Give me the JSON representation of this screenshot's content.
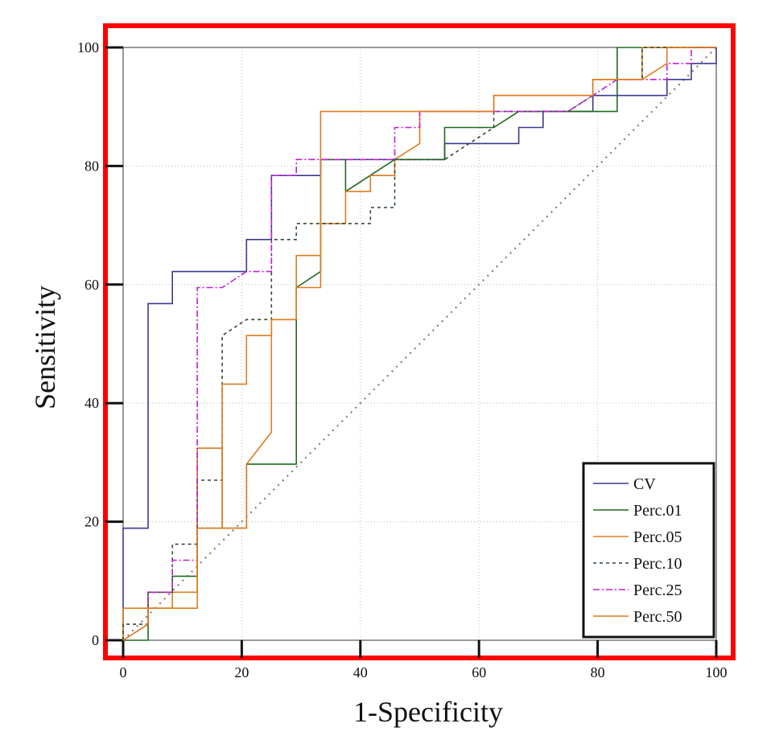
{
  "chart_data": {
    "type": "line",
    "title": "",
    "xlabel": "1-Specificity",
    "ylabel": "Sensitivity",
    "xlim": [
      0,
      100
    ],
    "ylim": [
      0,
      100
    ],
    "xticks": [
      0,
      20,
      40,
      60,
      80,
      100
    ],
    "yticks": [
      0,
      20,
      40,
      60,
      80,
      100
    ],
    "grid": true,
    "legend_position": "bottom-right",
    "frame_color": "#ff0000",
    "reference_line": {
      "name": "Reference",
      "color": "#8b6b6b",
      "points": [
        [
          0,
          0
        ],
        [
          100,
          100
        ]
      ]
    },
    "series": [
      {
        "name": "CV",
        "color": "#3a3a8c",
        "dash": "solid",
        "points": [
          [
            0,
            0
          ],
          [
            0,
            18.9
          ],
          [
            4.2,
            18.9
          ],
          [
            4.2,
            56.8
          ],
          [
            8.3,
            56.8
          ],
          [
            8.3,
            62.2
          ],
          [
            20.8,
            62.2
          ],
          [
            20.8,
            67.6
          ],
          [
            25,
            67.6
          ],
          [
            25,
            78.4
          ],
          [
            33.3,
            78.4
          ],
          [
            33.3,
            81.1
          ],
          [
            54.2,
            81.1
          ],
          [
            54.2,
            83.8
          ],
          [
            66.7,
            83.8
          ],
          [
            66.7,
            86.5
          ],
          [
            70.8,
            86.5
          ],
          [
            70.8,
            89.2
          ],
          [
            79.2,
            89.2
          ],
          [
            79.2,
            91.9
          ],
          [
            91.7,
            91.9
          ],
          [
            91.7,
            94.6
          ],
          [
            95.8,
            94.6
          ],
          [
            95.8,
            97.3
          ],
          [
            100,
            97.3
          ],
          [
            100,
            100
          ]
        ]
      },
      {
        "name": "Perc.01",
        "color": "#1f6b1f",
        "dash": "solid",
        "points": [
          [
            0,
            0
          ],
          [
            4.2,
            0
          ],
          [
            4.2,
            8.1
          ],
          [
            8.3,
            8.1
          ],
          [
            8.3,
            10.8
          ],
          [
            12.5,
            10.8
          ],
          [
            12.5,
            18.9
          ],
          [
            20.8,
            18.9
          ],
          [
            20.8,
            29.7
          ],
          [
            29.2,
            29.7
          ],
          [
            29.2,
            59.5
          ],
          [
            33.3,
            62.2
          ],
          [
            33.3,
            81.1
          ],
          [
            37.5,
            81.1
          ],
          [
            37.5,
            75.7
          ],
          [
            45.8,
            81.1
          ],
          [
            54.2,
            81.1
          ],
          [
            54.2,
            86.5
          ],
          [
            62.5,
            86.5
          ],
          [
            66.7,
            89.2
          ],
          [
            83.3,
            89.2
          ],
          [
            83.3,
            100
          ],
          [
            100,
            100
          ]
        ]
      },
      {
        "name": "Perc.05",
        "color": "#e07b20",
        "dash": "solid",
        "points": [
          [
            0,
            0
          ],
          [
            0,
            5.4
          ],
          [
            4.2,
            5.4
          ],
          [
            8.3,
            5.4
          ],
          [
            8.3,
            8.1
          ],
          [
            12.5,
            8.1
          ],
          [
            12.5,
            32.4
          ],
          [
            16.7,
            32.4
          ],
          [
            16.7,
            18.9
          ],
          [
            20.8,
            18.9
          ],
          [
            20.8,
            29.7
          ],
          [
            25,
            35.1
          ],
          [
            25,
            54.1
          ],
          [
            29.2,
            54.1
          ],
          [
            29.2,
            59.5
          ],
          [
            33.3,
            59.5
          ],
          [
            33.3,
            70.3
          ],
          [
            37.5,
            70.3
          ],
          [
            37.5,
            75.7
          ],
          [
            41.7,
            75.7
          ],
          [
            41.7,
            78.4
          ],
          [
            45.8,
            78.4
          ],
          [
            45.8,
            81.1
          ],
          [
            50,
            83.8
          ],
          [
            50,
            89.2
          ],
          [
            62.5,
            89.2
          ],
          [
            62.5,
            91.9
          ],
          [
            79.2,
            91.9
          ],
          [
            79.2,
            94.6
          ],
          [
            87.5,
            94.6
          ],
          [
            87.5,
            100
          ],
          [
            100,
            100
          ]
        ]
      },
      {
        "name": "Perc.10",
        "color": "#2d4a2d",
        "dash": "4,4",
        "points": [
          [
            0,
            0
          ],
          [
            0,
            2.7
          ],
          [
            4.2,
            2.7
          ],
          [
            4.2,
            8.1
          ],
          [
            8.3,
            8.1
          ],
          [
            8.3,
            16.2
          ],
          [
            12.5,
            16.2
          ],
          [
            12.5,
            27
          ],
          [
            16.7,
            27
          ],
          [
            16.7,
            51.4
          ],
          [
            20.8,
            54.1
          ],
          [
            25,
            54.1
          ],
          [
            25,
            67.6
          ],
          [
            29.2,
            67.6
          ],
          [
            29.2,
            70.3
          ],
          [
            41.7,
            70.3
          ],
          [
            41.7,
            73
          ],
          [
            45.8,
            73
          ],
          [
            45.8,
            81.1
          ],
          [
            54.2,
            81.1
          ],
          [
            62.5,
            86.5
          ],
          [
            62.5,
            89.2
          ],
          [
            75,
            89.2
          ],
          [
            79.2,
            91.9
          ],
          [
            79.2,
            94.6
          ],
          [
            87.5,
            94.6
          ],
          [
            87.5,
            100
          ],
          [
            100,
            100
          ]
        ]
      },
      {
        "name": "Perc.25",
        "color": "#c21fd6",
        "dash": "8,3,2,3",
        "points": [
          [
            0,
            0
          ],
          [
            4.2,
            2.7
          ],
          [
            4.2,
            8.1
          ],
          [
            8.3,
            8.1
          ],
          [
            8.3,
            13.5
          ],
          [
            12.5,
            13.5
          ],
          [
            12.5,
            59.5
          ],
          [
            16.7,
            59.5
          ],
          [
            20.8,
            62.2
          ],
          [
            25,
            62.2
          ],
          [
            25,
            78.4
          ],
          [
            29.2,
            78.4
          ],
          [
            29.2,
            81.1
          ],
          [
            45.8,
            81.1
          ],
          [
            45.8,
            86.5
          ],
          [
            50,
            86.5
          ],
          [
            50,
            89.2
          ],
          [
            62.5,
            89.2
          ],
          [
            75,
            89.2
          ],
          [
            79.2,
            91.9
          ],
          [
            83.3,
            94.6
          ],
          [
            91.7,
            94.6
          ],
          [
            91.7,
            97.3
          ],
          [
            95.8,
            97.3
          ],
          [
            95.8,
            100
          ],
          [
            100,
            100
          ]
        ]
      },
      {
        "name": "Perc.50",
        "color": "#e07b20",
        "dash": "solid",
        "points": [
          [
            0,
            0
          ],
          [
            4.2,
            2.7
          ],
          [
            4.2,
            5.4
          ],
          [
            8.3,
            5.4
          ],
          [
            12.5,
            5.4
          ],
          [
            12.5,
            18.9
          ],
          [
            16.7,
            18.9
          ],
          [
            16.7,
            43.2
          ],
          [
            20.8,
            43.2
          ],
          [
            20.8,
            51.4
          ],
          [
            25,
            51.4
          ],
          [
            25,
            54.1
          ],
          [
            29.2,
            54.1
          ],
          [
            29.2,
            64.9
          ],
          [
            33.3,
            64.9
          ],
          [
            33.3,
            89.2
          ],
          [
            62.5,
            89.2
          ],
          [
            62.5,
            91.9
          ],
          [
            79.2,
            91.9
          ],
          [
            79.2,
            94.6
          ],
          [
            87.5,
            94.6
          ],
          [
            91.7,
            97.3
          ],
          [
            91.7,
            100
          ],
          [
            100,
            100
          ]
        ]
      }
    ]
  }
}
